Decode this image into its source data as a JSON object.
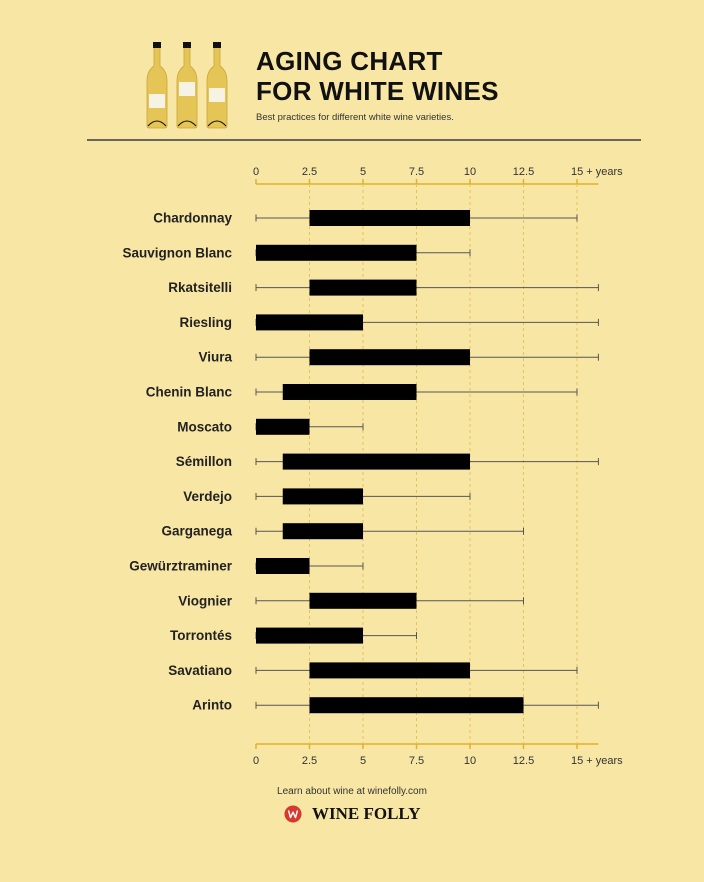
{
  "header": {
    "title_line1": "AGING CHART",
    "title_line2": "FOR WHITE WINES",
    "subtitle": "Best practices for different white wine varieties."
  },
  "footer": {
    "text": "Learn about wine at winefolly.com",
    "brand": "WINE FOLLY"
  },
  "icons": [
    "wine-bottle-icon",
    "wine-folly-logo-icon"
  ],
  "colors": {
    "background": "#f8e7a4",
    "bar": "#000000",
    "axis": "#e0b12a",
    "whisker": "#555555",
    "bottle": "#e6c557",
    "logo": "#d63a2f"
  },
  "chart_data": {
    "type": "bar",
    "orientation": "horizontal",
    "description_style": "range bars with whiskers",
    "xlim": [
      0,
      16
    ],
    "ticks": [
      0,
      2.5,
      5,
      7.5,
      10,
      12.5,
      15
    ],
    "tick_labels": [
      "0",
      "2.5",
      "5",
      "7.5",
      "10",
      "12.5",
      "15 + years"
    ],
    "grid": "vertical dashed",
    "categories": [
      "Chardonnay",
      "Sauvignon Blanc",
      "Rkatsitelli",
      "Riesling",
      "Viura",
      "Chenin Blanc",
      "Moscato",
      "Sémillon",
      "Verdejo",
      "Garganega",
      "Gewürztraminer",
      "Viognier",
      "Torrontés",
      "Savatiano",
      "Arinto"
    ],
    "series": [
      {
        "name": "",
        "whisker_min": 0,
        "bar_start": 2.5,
        "bar_end": 10,
        "whisker_max": 15
      },
      {
        "name": "",
        "whisker_min": 0,
        "bar_start": 0,
        "bar_end": 7.5,
        "whisker_max": 10
      },
      {
        "name": "",
        "whisker_min": 0,
        "bar_start": 2.5,
        "bar_end": 7.5,
        "whisker_max": 16
      },
      {
        "name": "",
        "whisker_min": 0,
        "bar_start": 0,
        "bar_end": 5,
        "whisker_max": 16
      },
      {
        "name": "",
        "whisker_min": 0,
        "bar_start": 2.5,
        "bar_end": 10,
        "whisker_max": 16
      },
      {
        "name": "",
        "whisker_min": 0,
        "bar_start": 1.25,
        "bar_end": 7.5,
        "whisker_max": 15
      },
      {
        "name": "",
        "whisker_min": 0,
        "bar_start": 0,
        "bar_end": 2.5,
        "whisker_max": 5
      },
      {
        "name": "",
        "whisker_min": 0,
        "bar_start": 1.25,
        "bar_end": 10,
        "whisker_max": 16
      },
      {
        "name": "",
        "whisker_min": 0,
        "bar_start": 1.25,
        "bar_end": 5,
        "whisker_max": 10
      },
      {
        "name": "",
        "whisker_min": 0,
        "bar_start": 1.25,
        "bar_end": 5,
        "whisker_max": 12.5
      },
      {
        "name": "",
        "whisker_min": 0,
        "bar_start": 0,
        "bar_end": 2.5,
        "whisker_max": 5
      },
      {
        "name": "",
        "whisker_min": 0,
        "bar_start": 2.5,
        "bar_end": 7.5,
        "whisker_max": 12.5
      },
      {
        "name": "",
        "whisker_min": 0,
        "bar_start": 0,
        "bar_end": 5,
        "whisker_max": 7.5
      },
      {
        "name": "",
        "whisker_min": 0,
        "bar_start": 2.5,
        "bar_end": 10,
        "whisker_max": 15
      },
      {
        "name": "",
        "whisker_min": 0,
        "bar_start": 2.5,
        "bar_end": 12.5,
        "whisker_max": 16
      }
    ]
  }
}
